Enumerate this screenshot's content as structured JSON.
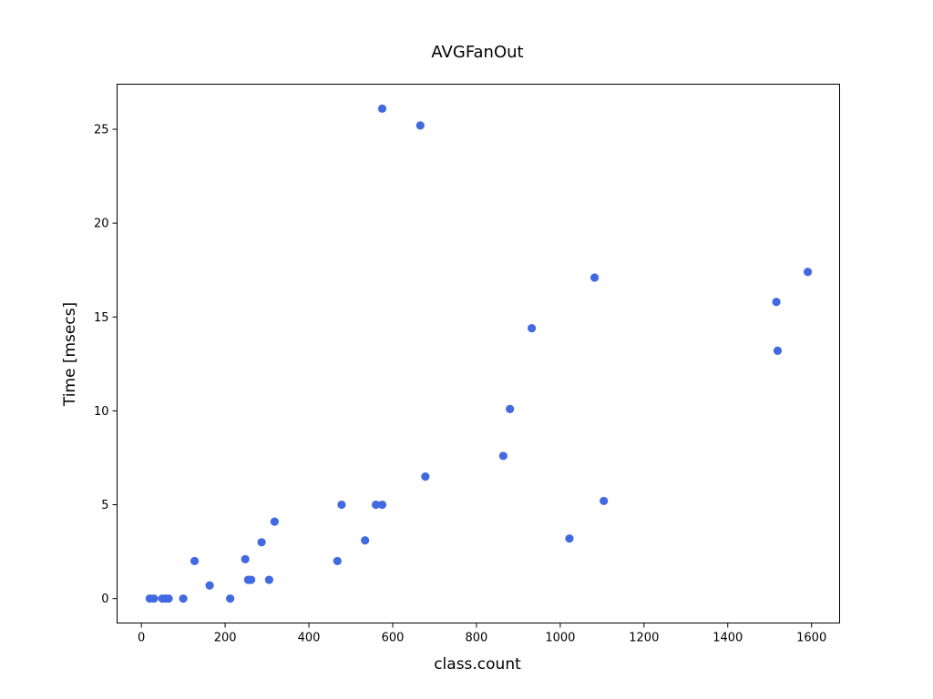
{
  "chart_data": {
    "type": "scatter",
    "title": "AVGFanOut",
    "xlabel": "class.count",
    "ylabel": "Time [msecs]",
    "xlim": [
      -58,
      1667
    ],
    "ylim": [
      -1.3,
      27.4
    ],
    "xticks": [
      0,
      200,
      400,
      600,
      800,
      1000,
      1200,
      1400,
      1600
    ],
    "yticks": [
      0,
      5,
      10,
      15,
      20,
      25
    ],
    "grid": false,
    "marker_color": "#4169e1",
    "series": [
      {
        "points": [
          {
            "x": 20,
            "y": 0
          },
          {
            "x": 30,
            "y": 0
          },
          {
            "x": 50,
            "y": 0
          },
          {
            "x": 58,
            "y": 0
          },
          {
            "x": 65,
            "y": 0
          },
          {
            "x": 100,
            "y": 0
          },
          {
            "x": 212,
            "y": 0
          },
          {
            "x": 163,
            "y": 0.7
          },
          {
            "x": 255,
            "y": 1
          },
          {
            "x": 262,
            "y": 1
          },
          {
            "x": 305,
            "y": 1
          },
          {
            "x": 127,
            "y": 2
          },
          {
            "x": 248,
            "y": 2.1
          },
          {
            "x": 287,
            "y": 3
          },
          {
            "x": 318,
            "y": 4.1
          },
          {
            "x": 468,
            "y": 2
          },
          {
            "x": 478,
            "y": 5
          },
          {
            "x": 534,
            "y": 3.1
          },
          {
            "x": 560,
            "y": 5
          },
          {
            "x": 575,
            "y": 5
          },
          {
            "x": 575,
            "y": 26.1
          },
          {
            "x": 666,
            "y": 25.2
          },
          {
            "x": 678,
            "y": 6.5
          },
          {
            "x": 864,
            "y": 7.6
          },
          {
            "x": 880,
            "y": 10.1
          },
          {
            "x": 932,
            "y": 14.4
          },
          {
            "x": 1022,
            "y": 3.2
          },
          {
            "x": 1082,
            "y": 17.1
          },
          {
            "x": 1104,
            "y": 5.2
          },
          {
            "x": 1516,
            "y": 15.8
          },
          {
            "x": 1519,
            "y": 13.2
          },
          {
            "x": 1591,
            "y": 17.4
          }
        ]
      }
    ]
  }
}
